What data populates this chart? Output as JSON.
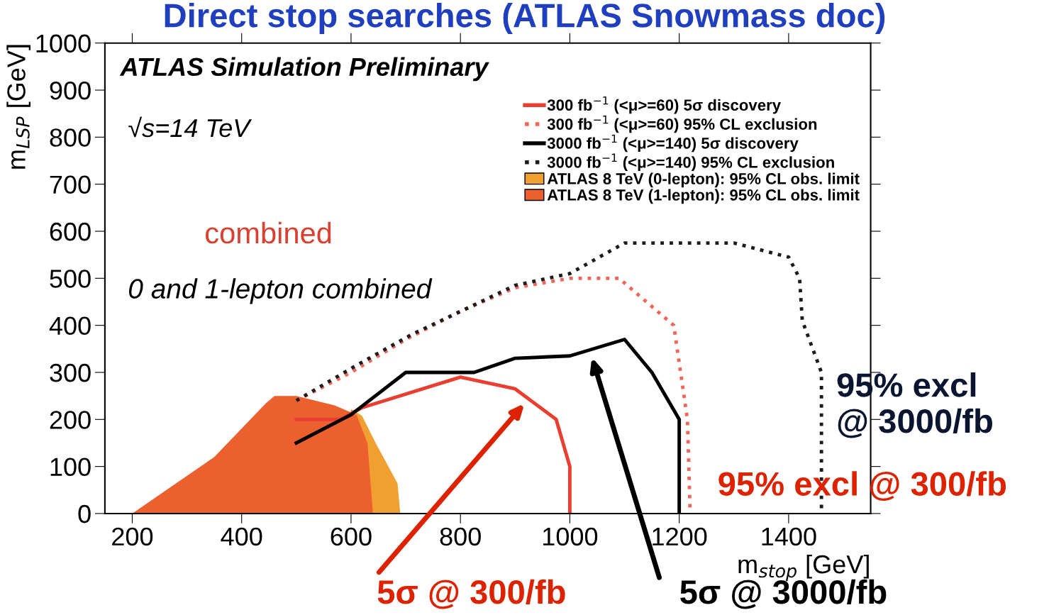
{
  "chart_data": {
    "type": "line",
    "title": "Direct stop searches (ATLAS Snowmass doc)",
    "xlabel": "m$_{stop}$ [GeV]",
    "ylabel": "m$_{LSP}$ [GeV]",
    "xlim": [
      150,
      1550
    ],
    "ylim": [
      0,
      1000
    ],
    "xticks": [
      200,
      400,
      600,
      800,
      1000,
      1200,
      1400
    ],
    "yticks": [
      0,
      100,
      200,
      300,
      400,
      500,
      600,
      700,
      800,
      900,
      1000
    ],
    "grid": false,
    "legend": "top right",
    "series": [
      {
        "name": "ATLAS 8 TeV (0-lepton): 95% CL obs. limit",
        "type": "area",
        "color": "#f0a030",
        "x": [
          600,
          620,
          645,
          665,
          685,
          690
        ],
        "values": [
          222,
          208,
          150,
          107,
          64,
          0
        ]
      },
      {
        "name": "ATLAS 8 TeV (1-lepton): 95% CL obs. limit",
        "type": "area",
        "color": "#ec6030",
        "x": [
          200,
          350,
          445,
          460,
          500,
          570,
          610,
          630,
          640
        ],
        "values": [
          0,
          120,
          235,
          250,
          250,
          230,
          210,
          150,
          0
        ]
      },
      {
        "name": "300 fb$^{−1}$ (<μ>=60) 5σ discovery",
        "line_style": "solid",
        "color": "#ea3f30",
        "x": [
          500,
          580,
          620,
          800,
          900,
          975,
          1000,
          1000
        ],
        "values": [
          200,
          200,
          225,
          290,
          265,
          200,
          100,
          0
        ]
      },
      {
        "name": "300 fb$^{−1}$ (<μ>=60) 95% CL exclusion",
        "line_style": "dotted",
        "color": "#f56458",
        "x": [
          500,
          600,
          700,
          800,
          900,
          1000,
          1090,
          1130,
          1190,
          1215,
          1220
        ],
        "values": [
          240,
          300,
          370,
          430,
          480,
          500,
          500,
          460,
          400,
          200,
          0
        ]
      },
      {
        "name": "3000 fb$^{−1}$ (<μ>=140) 5σ discovery",
        "line_style": "solid",
        "color": "#000000",
        "x": [
          500,
          600,
          700,
          825,
          900,
          1000,
          1100,
          1150,
          1200,
          1200
        ],
        "values": [
          150,
          210,
          300,
          300,
          330,
          335,
          370,
          300,
          200,
          0
        ]
      },
      {
        "name": "3000 fb$^{−1}$ (<μ>=140) 95% CL exclusion",
        "line_style": "dotted",
        "color": "#1c1c1c",
        "x": [
          500,
          610,
          710,
          810,
          900,
          1000,
          1100,
          1300,
          1400,
          1420,
          1425,
          1460,
          1460
        ],
        "values": [
          240,
          315,
          380,
          435,
          485,
          510,
          575,
          575,
          545,
          500,
          410,
          300,
          0
        ]
      }
    ],
    "annotations": [
      "ATLAS Simulation Preliminary",
      "√s=14 TeV",
      "combined",
      "0 and 1-lepton combined",
      "95% excl\n@ 3000/fb",
      "95% excl @ 300/fb",
      "5σ @ 300/fb",
      "5σ @ 3000/fb"
    ]
  }
}
